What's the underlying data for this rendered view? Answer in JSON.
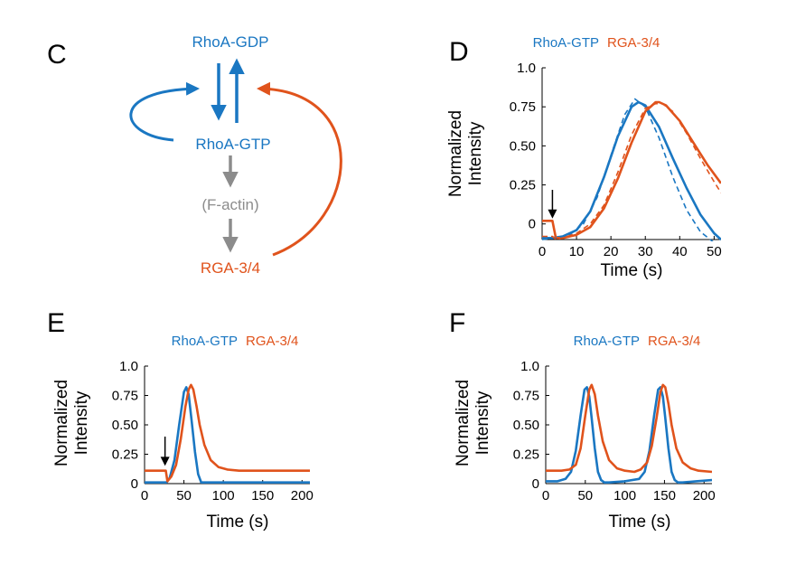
{
  "colors": {
    "rho": "#1a77c2",
    "rga": "#e0531c",
    "factin": "#8c8c8c",
    "axis": "#000000"
  },
  "panels": {
    "c": {
      "letter": "C"
    },
    "d": {
      "letter": "D"
    },
    "e": {
      "letter": "E"
    },
    "f": {
      "letter": "F"
    }
  },
  "diagram": {
    "nodes": {
      "rhoa_gdp": "RhoA-GDP",
      "rhoa_gtp": "RhoA-GTP",
      "factin": "(F-actin)",
      "rga": "RGA-3/4"
    }
  },
  "chart_data": [
    {
      "panel": "D",
      "type": "line",
      "xlabel": "Time (s)",
      "ylabel_line1": "Normalized",
      "ylabel_line2": "Intensity",
      "xlim": [
        0,
        52
      ],
      "ylim": [
        -0.1,
        1.0
      ],
      "xticks": [
        0,
        10,
        20,
        30,
        40,
        50
      ],
      "yticks": [
        0,
        0.25,
        0.5,
        0.75,
        1.0
      ],
      "ytick_labels": [
        "0",
        "0.25",
        "0.50",
        "0.75",
        "1.0"
      ],
      "legend": [
        "RhoA-GTP",
        "RGA-3/4"
      ],
      "arrow_x": 3,
      "series": [
        {
          "name": "RhoA-GTP",
          "color": "rho",
          "dashed": false,
          "x": [
            0,
            3,
            6,
            10,
            14,
            18,
            22,
            26,
            28,
            30,
            34,
            38,
            42,
            46,
            50,
            52
          ],
          "y": [
            -0.09,
            -0.09,
            -0.08,
            -0.04,
            0.08,
            0.3,
            0.56,
            0.75,
            0.78,
            0.76,
            0.62,
            0.42,
            0.23,
            0.06,
            -0.06,
            -0.1
          ]
        },
        {
          "name": "RGA-3/4",
          "color": "rga",
          "dashed": false,
          "x": [
            0,
            3,
            4,
            6,
            10,
            14,
            18,
            22,
            26,
            30,
            33,
            34,
            36,
            40,
            44,
            48,
            52
          ],
          "y": [
            0.02,
            0.02,
            -0.09,
            -0.09,
            -0.07,
            -0.02,
            0.1,
            0.29,
            0.52,
            0.72,
            0.78,
            0.78,
            0.76,
            0.66,
            0.52,
            0.38,
            0.26
          ]
        },
        {
          "name": "RhoA-GTP data",
          "color": "rho",
          "dashed": true,
          "x": [
            0,
            4,
            8,
            12,
            16,
            20,
            24,
            27,
            30,
            34,
            38,
            42,
            46,
            50,
            52
          ],
          "y": [
            -0.1,
            -0.09,
            -0.07,
            0.0,
            0.17,
            0.44,
            0.7,
            0.8,
            0.75,
            0.55,
            0.3,
            0.09,
            -0.05,
            -0.12,
            -0.13
          ]
        },
        {
          "name": "RGA-3/4 data",
          "color": "rga",
          "dashed": true,
          "x": [
            0,
            3,
            4,
            6,
            10,
            14,
            18,
            22,
            26,
            30,
            33,
            35,
            38,
            42,
            46,
            50,
            52
          ],
          "y": [
            -0.08,
            -0.08,
            -0.1,
            -0.09,
            -0.06,
            0.0,
            0.12,
            0.33,
            0.57,
            0.74,
            0.77,
            0.77,
            0.72,
            0.58,
            0.42,
            0.27,
            0.2
          ]
        }
      ]
    },
    {
      "panel": "E",
      "type": "line",
      "xlabel": "Time (s)",
      "ylabel_line1": "Normalized",
      "ylabel_line2": "Intensity",
      "xlim": [
        0,
        210
      ],
      "ylim": [
        0,
        1.0
      ],
      "xticks": [
        0,
        50,
        100,
        150,
        200
      ],
      "yticks": [
        0,
        0.25,
        0.5,
        0.75,
        1.0
      ],
      "ytick_labels": [
        "0",
        "0.25",
        "0.50",
        "0.75",
        "1.0"
      ],
      "legend": [
        "RhoA-GTP",
        "RGA-3/4"
      ],
      "arrow_x": 26,
      "series": [
        {
          "name": "RhoA-GTP",
          "color": "rho",
          "dashed": false,
          "x": [
            0,
            28,
            32,
            38,
            44,
            50,
            53,
            56,
            60,
            64,
            68,
            72,
            80,
            120,
            210
          ],
          "y": [
            0.01,
            0.01,
            0.05,
            0.2,
            0.5,
            0.78,
            0.82,
            0.76,
            0.52,
            0.27,
            0.08,
            0.01,
            0.01,
            0.01,
            0.01
          ]
        },
        {
          "name": "RGA-3/4",
          "color": "rga",
          "dashed": false,
          "x": [
            0,
            27,
            29,
            34,
            40,
            46,
            52,
            56,
            59,
            62,
            66,
            70,
            76,
            84,
            94,
            105,
            120,
            150,
            210
          ],
          "y": [
            0.11,
            0.11,
            0.02,
            0.06,
            0.16,
            0.38,
            0.66,
            0.8,
            0.84,
            0.8,
            0.66,
            0.5,
            0.33,
            0.2,
            0.14,
            0.12,
            0.11,
            0.11,
            0.11
          ]
        }
      ]
    },
    {
      "panel": "F",
      "type": "line",
      "xlabel": "Time (s)",
      "ylabel_line1": "Normalized",
      "ylabel_line2": "Intensity",
      "xlim": [
        0,
        210
      ],
      "ylim": [
        0,
        1.0
      ],
      "xticks": [
        0,
        50,
        100,
        150,
        200
      ],
      "yticks": [
        0,
        0.25,
        0.5,
        0.75,
        1.0
      ],
      "ytick_labels": [
        "0",
        "0.25",
        "0.50",
        "0.75",
        "1.0"
      ],
      "legend": [
        "RhoA-GTP",
        "RGA-3/4"
      ],
      "series": [
        {
          "name": "RhoA-GTP",
          "color": "rho",
          "dashed": false,
          "x": [
            0,
            15,
            25,
            32,
            38,
            44,
            49,
            52,
            55,
            58,
            62,
            66,
            70,
            74,
            80,
            100,
            118,
            125,
            131,
            137,
            142,
            145,
            148,
            151,
            155,
            159,
            163,
            167,
            173,
            190,
            210
          ],
          "y": [
            0.02,
            0.02,
            0.04,
            0.1,
            0.28,
            0.58,
            0.8,
            0.82,
            0.74,
            0.56,
            0.3,
            0.1,
            0.03,
            0.01,
            0.01,
            0.02,
            0.04,
            0.1,
            0.28,
            0.58,
            0.8,
            0.82,
            0.74,
            0.56,
            0.3,
            0.1,
            0.03,
            0.01,
            0.01,
            0.02,
            0.03
          ]
        },
        {
          "name": "RGA-3/4",
          "color": "rga",
          "dashed": false,
          "x": [
            0,
            20,
            30,
            38,
            44,
            50,
            55,
            58,
            62,
            66,
            72,
            80,
            90,
            100,
            112,
            120,
            128,
            134,
            140,
            145,
            148,
            151,
            155,
            159,
            165,
            173,
            183,
            193,
            210
          ],
          "y": [
            0.11,
            0.11,
            0.12,
            0.16,
            0.3,
            0.58,
            0.8,
            0.84,
            0.76,
            0.58,
            0.36,
            0.2,
            0.13,
            0.11,
            0.1,
            0.12,
            0.18,
            0.32,
            0.56,
            0.78,
            0.84,
            0.82,
            0.68,
            0.5,
            0.3,
            0.18,
            0.13,
            0.11,
            0.1
          ]
        }
      ]
    }
  ]
}
